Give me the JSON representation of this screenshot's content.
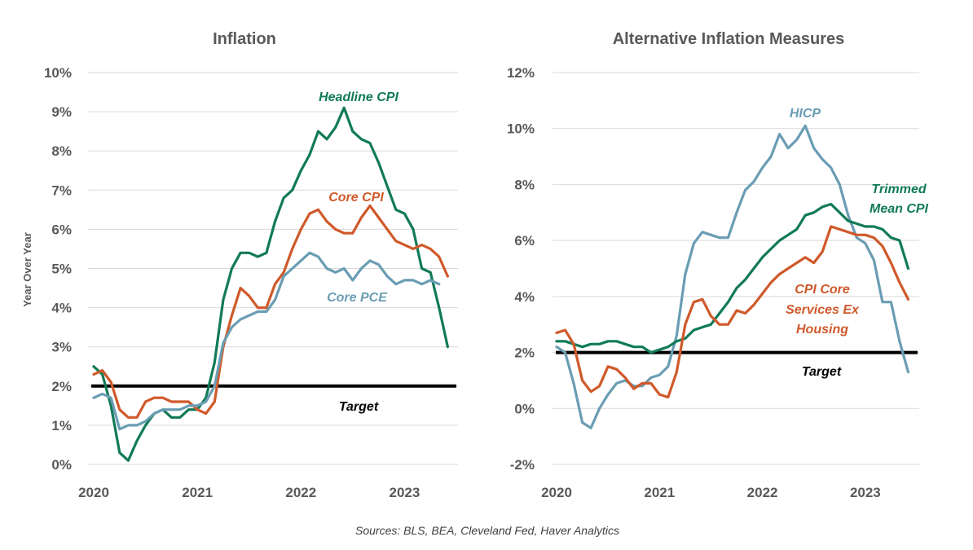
{
  "source": "Sources: BLS, BEA, Cleveland Fed, Haver Analytics",
  "colors": {
    "green": "#117a57",
    "orange": "#d0592a",
    "blue": "#6a9db3",
    "target": "#000000"
  },
  "chart_data": [
    {
      "type": "line",
      "title": "Inflation",
      "ylabel": "Year Over Year",
      "ylim": [
        0,
        10
      ],
      "yticks": [
        "0%",
        "1%",
        "2%",
        "3%",
        "4%",
        "5%",
        "6%",
        "7%",
        "8%",
        "9%",
        "10%"
      ],
      "xticks": [
        "2020",
        "2021",
        "2022",
        "2023"
      ],
      "xlim": [
        2020.0,
        2023.5
      ],
      "grid": true,
      "target": {
        "label": "Target",
        "value": 2
      },
      "series": [
        {
          "name": "Headline CPI",
          "color": "green",
          "x_start": 2020.0,
          "x_step": 0.08333,
          "values": [
            2.5,
            2.3,
            1.5,
            0.3,
            0.1,
            0.6,
            1.0,
            1.3,
            1.4,
            1.2,
            1.2,
            1.4,
            1.4,
            1.7,
            2.6,
            4.2,
            5.0,
            5.4,
            5.4,
            5.3,
            5.4,
            6.2,
            6.8,
            7.0,
            7.5,
            7.9,
            8.5,
            8.3,
            8.6,
            9.1,
            8.5,
            8.3,
            8.2,
            7.7,
            7.1,
            6.5,
            6.4,
            6.0,
            5.0,
            4.9,
            4.0,
            3.0
          ]
        },
        {
          "name": "Core CPI",
          "color": "orange",
          "x_start": 2020.0,
          "x_step": 0.08333,
          "values": [
            2.3,
            2.4,
            2.1,
            1.4,
            1.2,
            1.2,
            1.6,
            1.7,
            1.7,
            1.6,
            1.6,
            1.6,
            1.4,
            1.3,
            1.6,
            3.0,
            3.8,
            4.5,
            4.3,
            4.0,
            4.0,
            4.6,
            4.9,
            5.5,
            6.0,
            6.4,
            6.5,
            6.2,
            6.0,
            5.9,
            5.9,
            6.3,
            6.6,
            6.3,
            6.0,
            5.7,
            5.6,
            5.5,
            5.6,
            5.5,
            5.3,
            4.8
          ]
        },
        {
          "name": "Core PCE",
          "color": "blue",
          "x_start": 2020.0,
          "x_step": 0.08333,
          "values": [
            1.7,
            1.8,
            1.7,
            0.9,
            1.0,
            1.0,
            1.1,
            1.3,
            1.4,
            1.4,
            1.4,
            1.5,
            1.5,
            1.6,
            2.0,
            3.1,
            3.5,
            3.7,
            3.8,
            3.9,
            3.9,
            4.2,
            4.8,
            5.0,
            5.2,
            5.4,
            5.3,
            5.0,
            4.9,
            5.0,
            4.7,
            5.0,
            5.2,
            5.1,
            4.8,
            4.6,
            4.7,
            4.7,
            4.6,
            4.7,
            4.6
          ]
        }
      ]
    },
    {
      "type": "line",
      "title": "Alternative Inflation Measures",
      "ylim": [
        -2,
        12
      ],
      "yticks": [
        "-2%",
        "0%",
        "2%",
        "4%",
        "6%",
        "8%",
        "10%",
        "12%"
      ],
      "xticks": [
        "2020",
        "2021",
        "2022",
        "2023"
      ],
      "xlim": [
        2020.0,
        2023.5
      ],
      "grid": true,
      "target": {
        "label": "Target",
        "value": 2
      },
      "series": [
        {
          "name": "HICP",
          "color": "blue",
          "x_start": 2020.0,
          "x_step": 0.08333,
          "values": [
            2.2,
            2.0,
            0.9,
            -0.5,
            -0.7,
            0.0,
            0.5,
            0.9,
            1.0,
            0.8,
            0.8,
            1.1,
            1.2,
            1.5,
            2.6,
            4.8,
            5.9,
            6.3,
            6.2,
            6.1,
            6.1,
            7.0,
            7.8,
            8.1,
            8.6,
            9.0,
            9.8,
            9.3,
            9.6,
            10.1,
            9.3,
            8.9,
            8.6,
            8.0,
            6.9,
            6.1,
            5.9,
            5.3,
            3.8,
            3.8,
            2.4,
            1.3
          ]
        },
        {
          "name": "Trimmed Mean CPI",
          "color": "green",
          "x_start": 2020.0,
          "x_step": 0.08333,
          "values": [
            2.4,
            2.4,
            2.3,
            2.2,
            2.3,
            2.3,
            2.4,
            2.4,
            2.3,
            2.2,
            2.2,
            2.0,
            2.1,
            2.2,
            2.4,
            2.5,
            2.8,
            2.9,
            3.0,
            3.4,
            3.8,
            4.3,
            4.6,
            5.0,
            5.4,
            5.7,
            6.0,
            6.2,
            6.4,
            6.9,
            7.0,
            7.2,
            7.3,
            7.0,
            6.7,
            6.6,
            6.5,
            6.5,
            6.4,
            6.1,
            6.0,
            5.0
          ]
        },
        {
          "name": "CPI Core Services Ex Housing",
          "color": "orange",
          "x_start": 2020.0,
          "x_step": 0.08333,
          "values": [
            2.7,
            2.8,
            2.3,
            1.0,
            0.6,
            0.8,
            1.5,
            1.4,
            1.1,
            0.7,
            0.9,
            0.9,
            0.5,
            0.4,
            1.3,
            3.0,
            3.8,
            3.9,
            3.3,
            3.0,
            3.0,
            3.5,
            3.4,
            3.7,
            4.1,
            4.5,
            4.8,
            5.0,
            5.2,
            5.4,
            5.2,
            5.6,
            6.5,
            6.4,
            6.3,
            6.2,
            6.2,
            6.1,
            5.8,
            5.2,
            4.5,
            3.9
          ]
        }
      ]
    }
  ]
}
